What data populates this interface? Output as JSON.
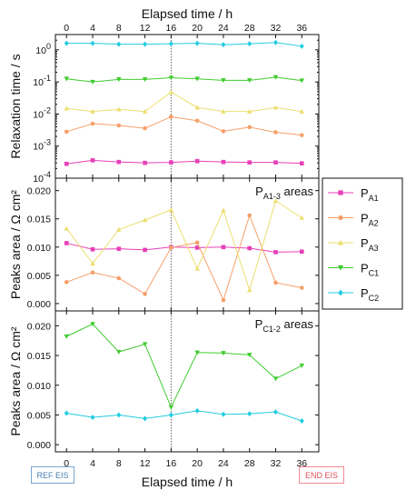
{
  "figure": {
    "top_axis_label": "Elapsed time / h",
    "bottom_axis_label": "Elapsed time / h",
    "x_ticks": [
      0,
      4,
      8,
      12,
      16,
      20,
      24,
      28,
      32,
      36
    ],
    "ref_label": "REF EIS",
    "end_label": "END EIS",
    "marker_line_x": 16
  },
  "chart_data": [
    {
      "type": "line",
      "ylabel": "Relaxation time / s",
      "yscale": "log",
      "ylim": [
        0.0001,
        3
      ],
      "yticks": [
        {
          "value": 0.0001,
          "base": "10",
          "exp": "-4"
        },
        {
          "value": 0.001,
          "base": "10",
          "exp": "-3"
        },
        {
          "value": 0.01,
          "base": "10",
          "exp": "-2"
        },
        {
          "value": 0.1,
          "base": "10",
          "exp": "-1"
        },
        {
          "value": 1,
          "base": "10",
          "exp": "0"
        }
      ],
      "x": [
        0,
        4,
        8,
        12,
        16,
        20,
        24,
        28,
        32,
        36
      ],
      "series": [
        {
          "key": "PA1",
          "color": "#e83fb8",
          "marker": "square",
          "values": [
            0.00028,
            0.00036,
            0.00032,
            0.0003,
            0.00031,
            0.00034,
            0.00032,
            0.00031,
            0.00031,
            0.00029
          ]
        },
        {
          "key": "PA2",
          "color": "#f5a06a",
          "marker": "circle",
          "values": [
            0.0028,
            0.005,
            0.0044,
            0.0036,
            0.0082,
            0.0062,
            0.0029,
            0.0039,
            0.0027,
            0.0022
          ]
        },
        {
          "key": "PA3",
          "color": "#ecdf70",
          "marker": "triangle-up",
          "values": [
            0.015,
            0.012,
            0.014,
            0.012,
            0.048,
            0.016,
            0.012,
            0.012,
            0.016,
            0.012
          ]
        },
        {
          "key": "PC1",
          "color": "#3fcc2e",
          "marker": "triangle-down",
          "values": [
            0.125,
            0.1,
            0.12,
            0.12,
            0.135,
            0.125,
            0.112,
            0.112,
            0.14,
            0.11
          ]
        },
        {
          "key": "PC2",
          "color": "#22cce0",
          "marker": "diamond",
          "values": [
            1.6,
            1.6,
            1.5,
            1.5,
            1.55,
            1.6,
            1.45,
            1.55,
            1.7,
            1.3
          ]
        }
      ]
    },
    {
      "type": "line",
      "ylabel": "Peaks area / Ω cm²",
      "panel_label": {
        "main": "P",
        "sub": "A1-3",
        "rest": " areas"
      },
      "ylim": [
        -0.0013,
        0.0222
      ],
      "yticks": [
        0.0,
        0.005,
        0.01,
        0.015,
        0.02
      ],
      "ytick_labels": [
        "0.000",
        "0.005",
        "0.010",
        "0.015",
        "0.020"
      ],
      "x": [
        0,
        4,
        8,
        12,
        16,
        20,
        24,
        28,
        32,
        36
      ],
      "series": [
        {
          "key": "PA1",
          "color": "#e83fb8",
          "marker": "square",
          "values": [
            0.0107,
            0.0096,
            0.0097,
            0.0095,
            0.01,
            0.0099,
            0.01,
            0.0098,
            0.0091,
            0.0092
          ]
        },
        {
          "key": "PA2",
          "color": "#f5a06a",
          "marker": "circle",
          "values": [
            0.0038,
            0.0055,
            0.0045,
            0.0017,
            0.0099,
            0.0108,
            0.0006,
            0.0156,
            0.0037,
            0.0028
          ]
        },
        {
          "key": "PA3",
          "color": "#ecdf70",
          "marker": "triangle-up",
          "values": [
            0.0133,
            0.0071,
            0.0131,
            0.0148,
            0.0166,
            0.0062,
            0.0165,
            0.0024,
            0.0182,
            0.0152
          ]
        }
      ]
    },
    {
      "type": "line",
      "ylabel": "Peaks area / Ω cm²",
      "panel_label": {
        "main": "P",
        "sub": "C1-2",
        "rest": " areas"
      },
      "ylim": [
        -0.0012,
        0.0225
      ],
      "yticks": [
        0.0,
        0.005,
        0.01,
        0.015,
        0.02
      ],
      "ytick_labels": [
        "0.000",
        "0.005",
        "0.010",
        "0.015",
        "0.020"
      ],
      "x": [
        0,
        4,
        8,
        12,
        16,
        20,
        24,
        28,
        32,
        36
      ],
      "series": [
        {
          "key": "PC1",
          "color": "#3fcc2e",
          "marker": "triangle-down",
          "values": [
            0.0182,
            0.0203,
            0.0156,
            0.0169,
            0.0063,
            0.0155,
            0.0154,
            0.0151,
            0.0111,
            0.0133
          ]
        },
        {
          "key": "PC2",
          "color": "#22cce0",
          "marker": "diamond",
          "values": [
            0.0053,
            0.0046,
            0.005,
            0.0044,
            0.005,
            0.0057,
            0.0051,
            0.0052,
            0.0055,
            0.004
          ]
        }
      ]
    }
  ],
  "legend": [
    {
      "key": "PA1",
      "main": "P",
      "sub": "A1",
      "color": "#e83fb8",
      "marker": "square"
    },
    {
      "key": "PA2",
      "main": "P",
      "sub": "A2",
      "color": "#f5a06a",
      "marker": "circle"
    },
    {
      "key": "PA3",
      "main": "P",
      "sub": "A3",
      "color": "#ecdf70",
      "marker": "triangle-up"
    },
    {
      "key": "PC1",
      "main": "P",
      "sub": "C1",
      "color": "#3fcc2e",
      "marker": "triangle-down"
    },
    {
      "key": "PC2",
      "main": "P",
      "sub": "C2",
      "color": "#22cce0",
      "marker": "diamond"
    }
  ]
}
